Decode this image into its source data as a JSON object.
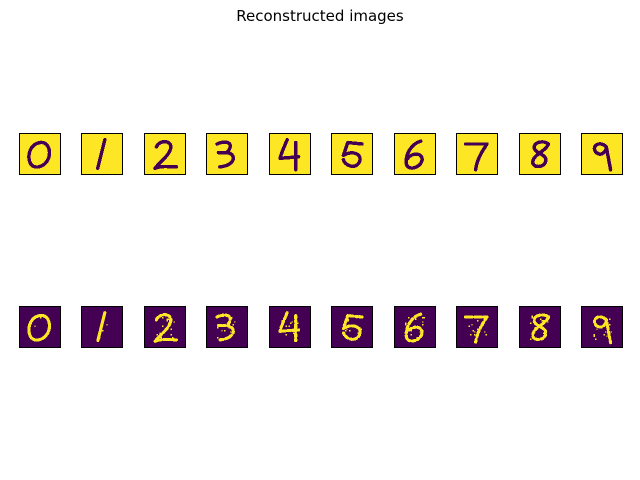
{
  "figure": {
    "title": "Reconstructed images"
  },
  "colors": {
    "original_background": "#fde725",
    "original_foreground": "#440154",
    "reconstructed_background": "#440154",
    "reconstructed_foreground": "#fde725"
  },
  "rows": [
    {
      "name": "original-images",
      "digits": [
        "0",
        "1",
        "2",
        "3",
        "4",
        "5",
        "6",
        "7",
        "8",
        "9"
      ]
    },
    {
      "name": "reconstructed-images",
      "digits": [
        "0",
        "1",
        "2",
        "3",
        "4",
        "5",
        "6",
        "7",
        "8",
        "9"
      ]
    }
  ]
}
